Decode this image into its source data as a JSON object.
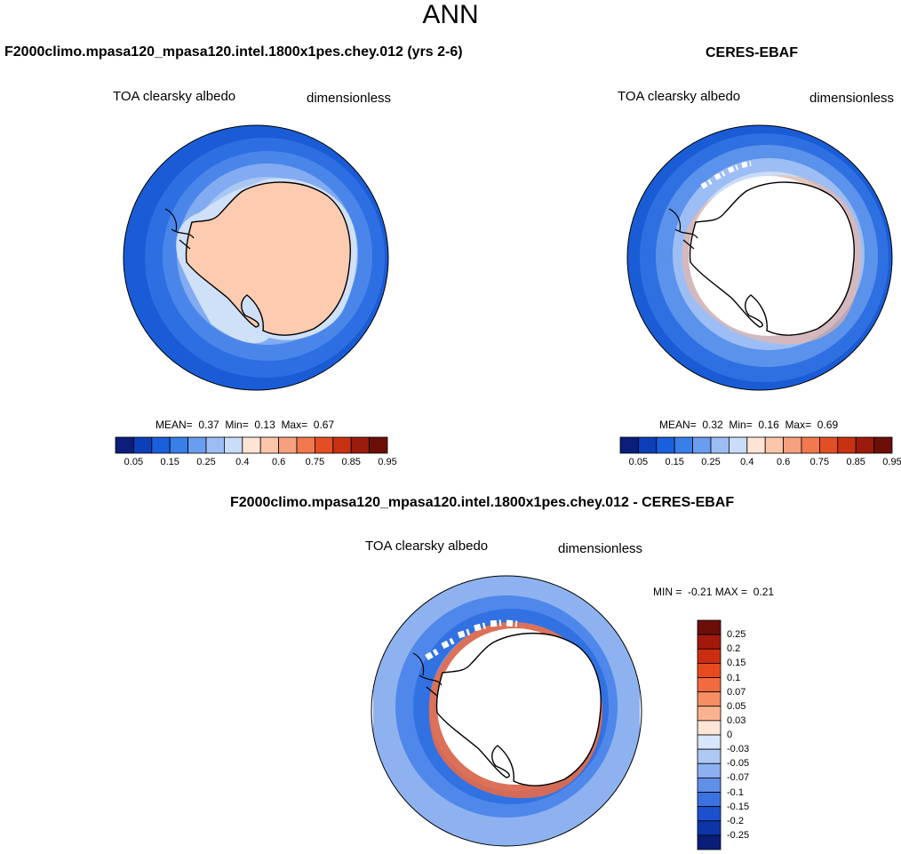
{
  "title": "ANN",
  "panels": [
    {
      "id": "model",
      "title": "F2000climo.mpasa120_mpasa120.intel.1800x1pes.chey.012 (yrs 2-6)",
      "variable": "TOA clearsky albedo",
      "units": "dimensionless",
      "stats": {
        "mean_label": "MEAN=",
        "mean": "0.37",
        "min_label": "Min=",
        "min": "0.13",
        "max_label": "Max=",
        "max": "0.67"
      },
      "colorbar_ticks": [
        "0.05",
        "0.15",
        "0.25",
        "0.4",
        "0.6",
        "0.75",
        "0.85",
        "0.95"
      ]
    },
    {
      "id": "obs",
      "title": "CERES-EBAF",
      "variable": "TOA clearsky albedo",
      "units": "dimensionless",
      "stats": {
        "mean_label": "MEAN=",
        "mean": "0.32",
        "min_label": "Min=",
        "min": "0.16",
        "max_label": "Max=",
        "max": "0.69"
      },
      "colorbar_ticks": [
        "0.05",
        "0.15",
        "0.25",
        "0.4",
        "0.6",
        "0.75",
        "0.85",
        "0.95"
      ]
    },
    {
      "id": "diff",
      "title": "F2000climo.mpasa120_mpasa120.intel.1800x1pes.chey.012 - CERES-EBAF",
      "variable": "TOA clearsky albedo",
      "units": "dimensionless",
      "stats": {
        "min_label": "MIN =",
        "min": "-0.21",
        "max_label": "MAX =",
        "max": "0.21"
      },
      "colorbar_ticks": [
        "0.25",
        "0.2",
        "0.15",
        "0.1",
        "0.07",
        "0.05",
        "0.03",
        "0",
        "-0.03",
        "-0.05",
        "-0.07",
        "-0.1",
        "-0.15",
        "-0.2",
        "-0.25"
      ]
    }
  ],
  "colors": {
    "horizontal_scale": [
      "#0a1e7a",
      "#0d3fb8",
      "#1a5fdc",
      "#3a7ee8",
      "#6a9cef",
      "#9cbdf4",
      "#c9dcf8",
      "#fde4d4",
      "#fbc5aa",
      "#f7a07d",
      "#f1784f",
      "#e34f25",
      "#c83212",
      "#9b1b0c",
      "#6b0f08"
    ],
    "vertical_scale": [
      "#6b0f08",
      "#a3190b",
      "#cc2d10",
      "#e84a1f",
      "#f26a3f",
      "#f78d63",
      "#fab390",
      "#fde6d6",
      "#d8e6fa",
      "#aec9f4",
      "#8cb0f0",
      "#5f8fe8",
      "#3a73e0",
      "#1c50cf",
      "#0e35a8",
      "#081e78"
    ]
  }
}
